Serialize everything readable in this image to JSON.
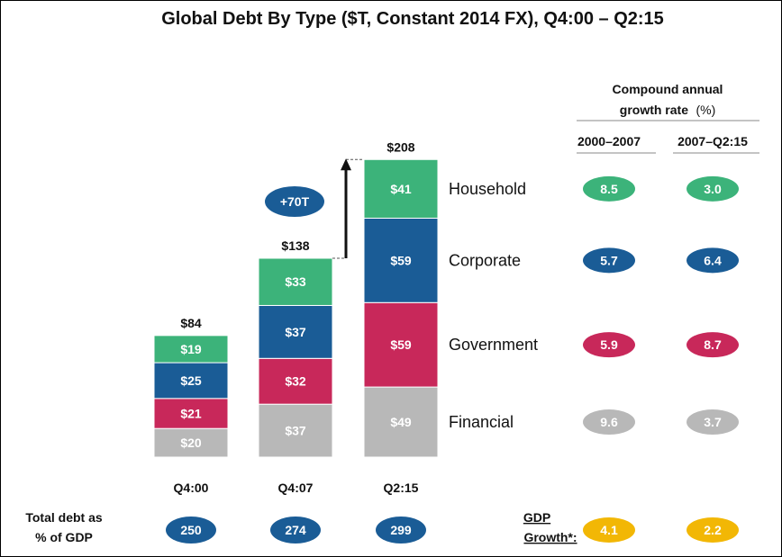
{
  "chart_data": {
    "type": "bar",
    "stacked": true,
    "title": "Global Debt By Type ($T, Constant 2014 FX), Q4:00 – Q2:15",
    "categories": [
      "Q4:00",
      "Q4:07",
      "Q2:15"
    ],
    "totals": [
      84,
      138,
      208
    ],
    "total_labels": [
      "$84",
      "$138",
      "$208"
    ],
    "series": [
      {
        "name": "Financial",
        "color": "#b8b8b8",
        "values": [
          20,
          37,
          49
        ],
        "labels": [
          "$20",
          "$37",
          "$49"
        ]
      },
      {
        "name": "Government",
        "color": "#c8285a",
        "values": [
          21,
          32,
          59
        ],
        "labels": [
          "$21",
          "$32",
          "$59"
        ]
      },
      {
        "name": "Corporate",
        "color": "#1a5c96",
        "values": [
          25,
          37,
          59
        ],
        "labels": [
          "$25",
          "$37",
          "$59"
        ]
      },
      {
        "name": "Household",
        "color": "#3cb37a",
        "values": [
          19,
          33,
          41
        ],
        "labels": [
          "$19",
          "$33",
          "$41"
        ]
      }
    ],
    "increase_annotation": "+70T",
    "cagr": {
      "header_line1": "Compound annual",
      "header_line2": "growth rate",
      "header_unit": "(%)",
      "periods": [
        "2000–2007",
        "2007–Q2:15"
      ],
      "rows": [
        {
          "name": "Household",
          "values": [
            "8.5",
            "3.0"
          ]
        },
        {
          "name": "Corporate",
          "values": [
            "5.7",
            "6.4"
          ]
        },
        {
          "name": "Government",
          "values": [
            "5.9",
            "8.7"
          ]
        },
        {
          "name": "Financial",
          "values": [
            "9.6",
            "3.7"
          ]
        }
      ]
    },
    "debt_to_gdp": {
      "label_line1": "Total debt as",
      "label_line2": "% of GDP",
      "values": [
        "250",
        "274",
        "299"
      ]
    },
    "gdp_growth": {
      "label_line1": "GDP",
      "label_line2": "Growth*:",
      "values": [
        "4.1",
        "2.2"
      ]
    }
  },
  "colors": {
    "pill_blue": "#1a5c96",
    "pill_green": "#3cb37a",
    "pill_red": "#c8285a",
    "pill_grey": "#b8b8b8",
    "pill_gold": "#f2b705",
    "arrow": "#111111"
  }
}
